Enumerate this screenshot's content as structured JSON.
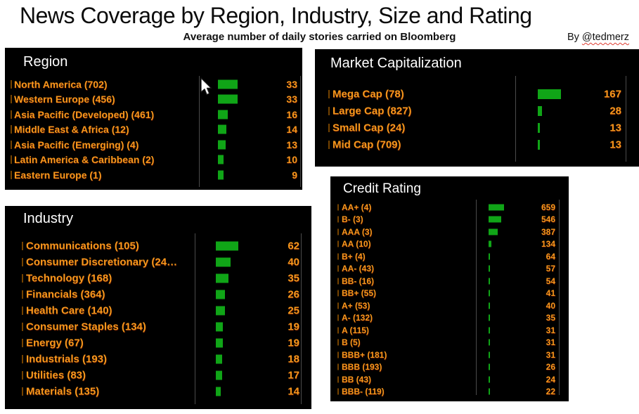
{
  "header": {
    "title": "News Coverage by Region, Industry, Size and Rating",
    "subtitle": "Average number of daily stories carried on Bloomberg",
    "byline_prefix": "By ",
    "byline_handle": "@tedmerz"
  },
  "colors": {
    "page_background": "#ffffff",
    "panel_background": "#000000",
    "label_orange": "#f5981c",
    "bar_green": "#10a517",
    "panel_title_white": "#ffffff",
    "axis_line_gray": "#4b4b4b",
    "squiggle_red": "#e03c31"
  },
  "icons": {
    "mouse_cursor": "arrow-pointer"
  },
  "chart_data": [
    {
      "type": "bar",
      "orientation": "horizontal",
      "title": "Region",
      "xlim": [
        0,
        33
      ],
      "value_labels": "right",
      "categories": [
        "North America (702)",
        "Western Europe (456)",
        "Asia Pacific (Developed) (461)",
        "Middle East & Africa (12)",
        "Asia Pacific (Emerging) (4)",
        "Latin America & Caribbean (2)",
        "Eastern Europe (1)"
      ],
      "values": [
        33,
        33,
        16,
        14,
        13,
        10,
        9
      ]
    },
    {
      "type": "bar",
      "orientation": "horizontal",
      "title": "Market Capitalization",
      "xlim": [
        0,
        167
      ],
      "value_labels": "right",
      "categories": [
        "Mega Cap (78)",
        "Large Cap (827)",
        "Small Cap (24)",
        "Mid Cap (709)"
      ],
      "values": [
        167,
        28,
        13,
        13
      ]
    },
    {
      "type": "bar",
      "orientation": "horizontal",
      "title": "Industry",
      "xlim": [
        0,
        62
      ],
      "value_labels": "right",
      "categories": [
        "Communications (105)",
        "Consumer Discretionary (24…",
        "Technology (168)",
        "Financials (364)",
        "Health Care (140)",
        "Consumer Staples (134)",
        "Energy (67)",
        "Industrials (193)",
        "Utilities (83)",
        "Materials (135)"
      ],
      "values": [
        62,
        40,
        35,
        26,
        25,
        19,
        19,
        18,
        17,
        14
      ]
    },
    {
      "type": "bar",
      "orientation": "horizontal",
      "title": "Credit Rating",
      "xlim": [
        0,
        659
      ],
      "value_labels": "right",
      "categories": [
        "AA+ (4)",
        "B- (3)",
        "AAA (3)",
        "AA (10)",
        "B+ (4)",
        "AA- (43)",
        "BB- (16)",
        "BB+ (55)",
        "A+ (53)",
        "A- (132)",
        "A (115)",
        "B (5)",
        "BBB+ (181)",
        "BBB (193)",
        "BB (43)",
        "BBB- (119)"
      ],
      "values": [
        659,
        546,
        387,
        134,
        64,
        57,
        54,
        41,
        40,
        35,
        31,
        31,
        31,
        26,
        24,
        22
      ]
    }
  ]
}
